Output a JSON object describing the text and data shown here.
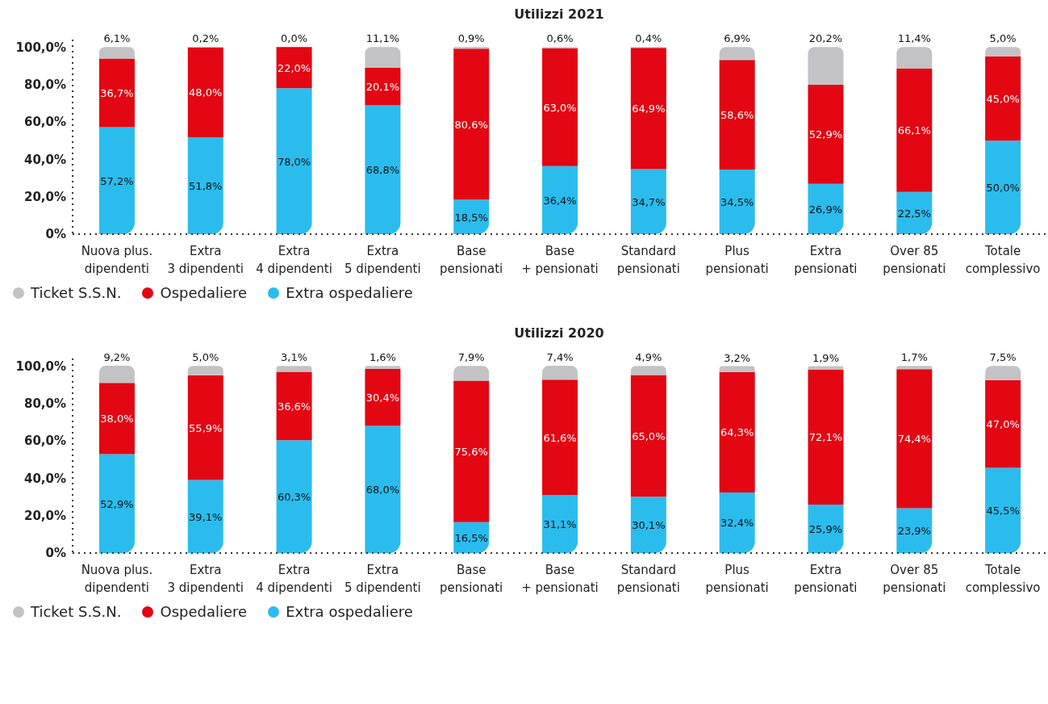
{
  "chart_data": [
    {
      "type": "bar",
      "title": "Utilizzi 2021",
      "stacked": true,
      "data_labels": true,
      "grid": false,
      "legend": "bottom left",
      "categories": [
        "Nuova plus.\ndipendenti",
        "Extra\n3 dipendenti",
        "Extra\n4 dipendenti",
        "Extra\n5 dipendenti",
        "Base\npensionati",
        "Base\n+ pensionati",
        "Standard\npensionati",
        "Plus\npensionati",
        "Extra\npensionati",
        "Over 85\npensionati",
        "Totale\ncomplessivo"
      ],
      "ylim": [
        0,
        104
      ],
      "yticks": [
        {
          "value": 0,
          "label": "0%"
        },
        {
          "value": 20,
          "label": "20,0%"
        },
        {
          "value": 40,
          "label": "40,0%"
        },
        {
          "value": 60,
          "label": "60,0%"
        },
        {
          "value": 80,
          "label": "80,0%"
        },
        {
          "value": 100,
          "label": "100,0%"
        }
      ],
      "series": [
        {
          "name": "Extra ospedaliere",
          "color": "#2bbcee",
          "values": [
            57.2,
            51.8,
            78.0,
            68.8,
            18.5,
            36.4,
            34.7,
            34.5,
            26.9,
            22.5,
            50.0
          ],
          "value_labels": [
            "57,2%",
            "51,8%",
            "78,0%",
            "68,8%",
            "18,5%",
            "36,4%",
            "34,7%",
            "34,5%",
            "26,9%",
            "22,5%",
            "50,0%"
          ]
        },
        {
          "name": "Ospedaliere",
          "color": "#e30613",
          "values": [
            36.7,
            48.0,
            22.0,
            20.1,
            80.6,
            63.0,
            64.9,
            58.6,
            52.9,
            66.1,
            45.0
          ],
          "value_labels": [
            "36,7%",
            "48,0%",
            "22,0%",
            "20,1%",
            "80,6%",
            "63,0%",
            "64,9%",
            "58,6%",
            "52,9%",
            "66,1%",
            "45,0%"
          ]
        },
        {
          "name": "Ticket S.S.N.",
          "color": "#c3c3c6",
          "values": [
            6.1,
            0.2,
            0.0,
            11.1,
            0.9,
            0.6,
            0.4,
            6.9,
            20.2,
            11.4,
            5.0
          ],
          "value_labels": [
            "6,1%",
            "0,2%",
            "0,0%",
            "11,1%",
            "0,9%",
            "0,6%",
            "0,4%",
            "6,9%",
            "20,2%",
            "11,4%",
            "5,0%"
          ]
        }
      ]
    },
    {
      "type": "bar",
      "title": "Utilizzi 2020",
      "stacked": true,
      "data_labels": true,
      "grid": false,
      "legend": "bottom left",
      "categories": [
        "Nuova plus.\ndipendenti",
        "Extra\n3 dipendenti",
        "Extra\n4 dipendenti",
        "Extra\n5 dipendenti",
        "Base\npensionati",
        "Base\n+ pensionati",
        "Standard\npensionati",
        "Plus\npensionati",
        "Extra\npensionati",
        "Over 85\npensionati",
        "Totale\ncomplessivo"
      ],
      "ylim": [
        0,
        104
      ],
      "yticks": [
        {
          "value": 0,
          "label": "0%"
        },
        {
          "value": 20,
          "label": "20,0%"
        },
        {
          "value": 40,
          "label": "40,0%"
        },
        {
          "value": 60,
          "label": "60,0%"
        },
        {
          "value": 80,
          "label": "80,0%"
        },
        {
          "value": 100,
          "label": "100,0%"
        }
      ],
      "series": [
        {
          "name": "Extra ospedaliere",
          "color": "#2bbcee",
          "values": [
            52.9,
            39.1,
            60.3,
            68.0,
            16.5,
            31.1,
            30.1,
            32.4,
            25.9,
            23.9,
            45.5
          ],
          "value_labels": [
            "52,9%",
            "39,1%",
            "60,3%",
            "68,0%",
            "16,5%",
            "31,1%",
            "30,1%",
            "32,4%",
            "25,9%",
            "23,9%",
            "45,5%"
          ]
        },
        {
          "name": "Ospedaliere",
          "color": "#e30613",
          "values": [
            38.0,
            55.9,
            36.6,
            30.4,
            75.6,
            61.6,
            65.0,
            64.3,
            72.1,
            74.4,
            47.0
          ],
          "value_labels": [
            "38,0%",
            "55,9%",
            "36,6%",
            "30,4%",
            "75,6%",
            "61,6%",
            "65,0%",
            "64,3%",
            "72,1%",
            "74,4%",
            "47,0%"
          ]
        },
        {
          "name": "Ticket S.S.N.",
          "color": "#c3c3c6",
          "values": [
            9.2,
            5.0,
            3.1,
            1.6,
            7.9,
            7.4,
            4.9,
            3.2,
            1.9,
            1.7,
            7.5
          ],
          "value_labels": [
            "9,2%",
            "5,0%",
            "3,1%",
            "1,6%",
            "7,9%",
            "7,4%",
            "4,9%",
            "3,2%",
            "1,9%",
            "1,7%",
            "7,5%"
          ]
        }
      ]
    }
  ]
}
